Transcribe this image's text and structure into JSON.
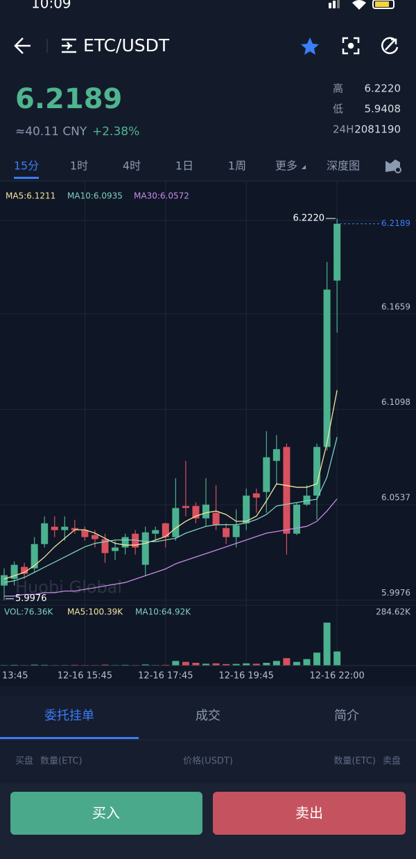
{
  "status": {
    "time": "10:09"
  },
  "header": {
    "pair": "ETC/USDT"
  },
  "ticker": {
    "price": "6.2189",
    "cny": "≈40.11 CNY",
    "change": "+2.38%",
    "stats": [
      {
        "label": "高",
        "value": "6.2220"
      },
      {
        "label": "低",
        "value": "5.9408"
      },
      {
        "label": "24H",
        "value": "2081190"
      }
    ]
  },
  "intervals": [
    "15分",
    "1时",
    "4时",
    "1日",
    "1周",
    "更多",
    "深度图"
  ],
  "chart_data": {
    "type": "candlestick",
    "watermark": "Huobi Global",
    "ylim": [
      5.993,
      6.2355
    ],
    "yticks": [
      6.1659,
      6.1098,
      6.0537,
      5.9976
    ],
    "up_color": "#4bb18f",
    "down_color": "#d9505f",
    "categories": [
      "13:45",
      null,
      null,
      null,
      null,
      null,
      null,
      null,
      "12-16 15:45",
      null,
      null,
      null,
      null,
      null,
      null,
      null,
      "12-16 17:45",
      null,
      null,
      null,
      null,
      null,
      null,
      null,
      "12-16 19:45",
      null,
      null,
      null,
      null,
      null,
      null,
      null,
      null,
      "12-16 22:00"
    ],
    "candles": [
      {
        "open": 6.0062,
        "high": 6.0163,
        "low": 5.9976,
        "close": 6.0123
      },
      {
        "open": 6.0102,
        "high": 6.0204,
        "low": 6.0062,
        "close": 6.0184
      },
      {
        "open": 6.0172,
        "high": 6.0196,
        "low": 6.0102,
        "close": 6.0131
      },
      {
        "open": 6.0163,
        "high": 6.0347,
        "low": 6.0143,
        "close": 6.0306
      },
      {
        "open": 6.0306,
        "high": 6.0469,
        "low": 6.0286,
        "close": 6.0428
      },
      {
        "open": 6.0408,
        "high": 6.0469,
        "low": 6.0347,
        "close": 6.0388
      },
      {
        "open": 6.0388,
        "high": 6.0469,
        "low": 6.0326,
        "close": 6.0408
      },
      {
        "open": 6.04,
        "high": 6.0449,
        "low": 6.0367,
        "close": 6.0388
      },
      {
        "open": 6.0388,
        "high": 6.0408,
        "low": 6.0326,
        "close": 6.0347
      },
      {
        "open": 6.0359,
        "high": 6.0388,
        "low": 6.0286,
        "close": 6.0335
      },
      {
        "open": 6.0335,
        "high": 6.0367,
        "low": 6.0196,
        "close": 6.0253
      },
      {
        "open": 6.0265,
        "high": 6.0326,
        "low": 6.0212,
        "close": 6.0286
      },
      {
        "open": 6.0286,
        "high": 6.0367,
        "low": 6.0245,
        "close": 6.0347
      },
      {
        "open": 6.0367,
        "high": 6.0388,
        "low": 6.0245,
        "close": 6.0286
      },
      {
        "open": 6.0184,
        "high": 6.0408,
        "low": 6.0123,
        "close": 6.0375
      },
      {
        "open": 6.0367,
        "high": 6.0408,
        "low": 6.0326,
        "close": 6.0388
      },
      {
        "open": 6.0428,
        "high": 6.0432,
        "low": 6.0286,
        "close": 6.0347
      },
      {
        "open": 6.0347,
        "high": 6.0693,
        "low": 6.0326,
        "close": 6.0518
      },
      {
        "open": 6.053,
        "high": 6.0795,
        "low": 6.0469,
        "close": 6.0518
      },
      {
        "open": 6.053,
        "high": 6.0551,
        "low": 6.0428,
        "close": 6.0457
      },
      {
        "open": 6.0457,
        "high": 6.0693,
        "low": 6.0408,
        "close": 6.0538
      },
      {
        "open": 6.049,
        "high": 6.0652,
        "low": 6.0388,
        "close": 6.0416
      },
      {
        "open": 6.04,
        "high": 6.0428,
        "low": 6.0306,
        "close": 6.0347
      },
      {
        "open": 6.0347,
        "high": 6.051,
        "low": 6.0286,
        "close": 6.0416
      },
      {
        "open": 6.0428,
        "high": 6.0632,
        "low": 6.0388,
        "close": 6.0591
      },
      {
        "open": 6.0604,
        "high": 6.0632,
        "low": 6.049,
        "close": 6.0579
      },
      {
        "open": 6.0612,
        "high": 6.097,
        "low": 6.049,
        "close": 6.0816
      },
      {
        "open": 6.0795,
        "high": 6.0946,
        "low": 6.0652,
        "close": 6.0864
      },
      {
        "open": 6.0877,
        "high": 6.0897,
        "low": 6.0245,
        "close": 6.0367
      },
      {
        "open": 6.0367,
        "high": 6.0551,
        "low": 6.0359,
        "close": 6.0538
      },
      {
        "open": 6.0538,
        "high": 6.0652,
        "low": 6.053,
        "close": 6.0591
      },
      {
        "open": 6.0591,
        "high": 6.0897,
        "low": 6.0449,
        "close": 6.0877
      },
      {
        "open": 6.0877,
        "high": 6.1965,
        "low": 6.0856,
        "close": 6.1802
      },
      {
        "open": 6.1855,
        "high": 6.222,
        "low": 6.1549,
        "close": 6.2189
      }
    ],
    "series": [
      {
        "name": "MA5:6.1211",
        "color": "#f3e7a0",
        "values": [
          6.01,
          6.012,
          6.014,
          6.018,
          6.023,
          6.029,
          6.034,
          6.039,
          6.039,
          6.037,
          6.034,
          6.031,
          6.03,
          6.03,
          6.031,
          6.033,
          6.035,
          6.04,
          6.044,
          6.047,
          6.049,
          6.05,
          6.048,
          6.044,
          6.044,
          6.047,
          6.056,
          6.066,
          6.065,
          6.064,
          6.064,
          6.066,
          6.09,
          6.1211
        ]
      },
      {
        "name": "MA10:6.0935",
        "color": "#7fd1c0",
        "values": [
          6.008,
          6.009,
          6.011,
          6.014,
          6.017,
          6.02,
          6.023,
          6.026,
          6.029,
          6.031,
          6.032,
          6.033,
          6.033,
          6.033,
          6.032,
          6.032,
          6.033,
          6.034,
          6.037,
          6.039,
          6.041,
          6.042,
          6.042,
          6.042,
          6.043,
          6.045,
          6.048,
          6.053,
          6.054,
          6.055,
          6.056,
          6.057,
          6.07,
          6.0935
        ]
      },
      {
        "name": "MA30:6.0572",
        "color": "#c88ee8",
        "values": [
          6.0,
          6.0,
          6.001,
          6.001,
          6.002,
          6.002,
          6.003,
          6.003,
          6.004,
          6.005,
          6.006,
          6.007,
          6.008,
          6.01,
          6.012,
          6.014,
          6.016,
          6.019,
          6.021,
          6.023,
          6.025,
          6.027,
          6.029,
          6.031,
          6.033,
          6.035,
          6.037,
          6.038,
          6.039,
          6.04,
          6.041,
          6.044,
          6.05,
          6.0572
        ]
      }
    ],
    "high_marker": {
      "value": 6.222,
      "label": "6.2220"
    },
    "low_marker": {
      "value": 5.9976,
      "label": "5.9976"
    },
    "last_price": {
      "value": 6.2189,
      "label": "6.2189"
    },
    "volume": {
      "labels": [
        "VOL:76.36K",
        "MA5:100.39K",
        "MA10:64.92K"
      ],
      "ylim": [
        0,
        284.62
      ],
      "yticks": [
        {
          "value": 284.62,
          "label": "284.62K"
        }
      ],
      "values": [
        3,
        4,
        3,
        5,
        4,
        3,
        3,
        4,
        3,
        3,
        5,
        3,
        4,
        3,
        6,
        3,
        4,
        25,
        20,
        15,
        10,
        12,
        8,
        9,
        12,
        10,
        15,
        25,
        40,
        20,
        35,
        70,
        232,
        76.36
      ]
    }
  },
  "tabs": [
    "委托挂单",
    "成交",
    "简介"
  ],
  "orderbook_headers": [
    "买盘",
    "数量(ETC)",
    "价格(USDT)",
    "数量(ETC)",
    "卖盘"
  ],
  "buttons": {
    "buy": "买入",
    "sell": "卖出"
  }
}
